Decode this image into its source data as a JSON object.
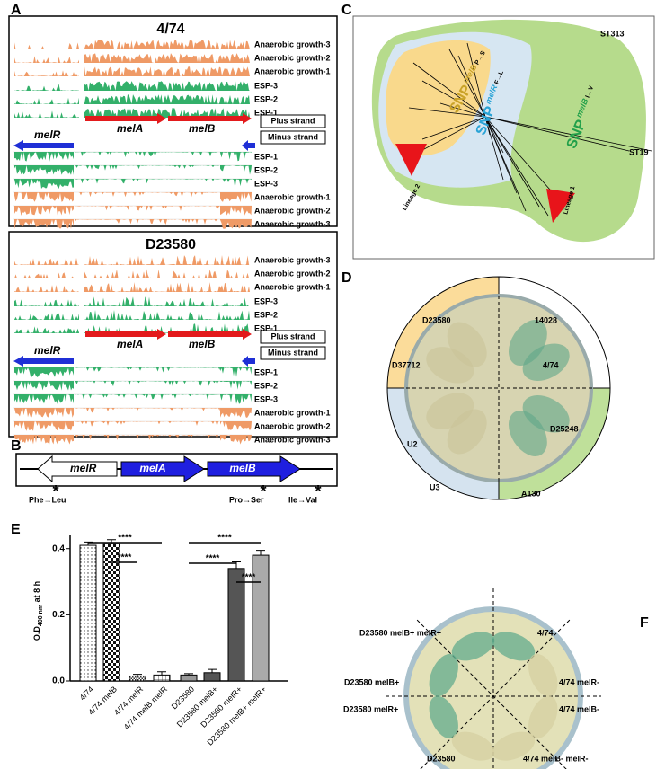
{
  "panel_a": {
    "label": "A",
    "blocks": [
      {
        "title": "4/74",
        "top_tracks": [
          "Anaerobic growth-3",
          "Anaerobic growth-2",
          "Anaerobic growth-1",
          "ESP-3",
          "ESP-2",
          "ESP-1"
        ],
        "genes": [
          "melA",
          "melB"
        ],
        "plus_strand": "Plus strand",
        "minus_strand": "Minus strand",
        "gene_minus": "melR",
        "bottom_tracks": [
          "ESP-1",
          "ESP-2",
          "ESP-3",
          "Anaerobic growth-1",
          "Anaerobic growth-2",
          "Anaerobic growth-3"
        ]
      },
      {
        "title": "D23580",
        "top_tracks": [
          "Anaerobic growth-3",
          "Anaerobic growth-2",
          "Anaerobic growth-1",
          "ESP-3",
          "ESP-2",
          "ESP-1"
        ],
        "genes": [
          "melA",
          "melB"
        ],
        "plus_strand": "Plus strand",
        "minus_strand": "Minus strand",
        "gene_minus": "melR",
        "bottom_tracks": [
          "ESP-1",
          "ESP-2",
          "ESP-3",
          "Anaerobic growth-1",
          "Anaerobic growth-2",
          "Anaerobic growth-3"
        ]
      }
    ]
  },
  "panel_b": {
    "label": "B",
    "genes": [
      "melR",
      "melA",
      "melB"
    ],
    "mutations": [
      "Phe→Leu",
      "Pro→Ser",
      "Ile→Val"
    ],
    "marker": "*"
  },
  "panel_c": {
    "label": "C",
    "group": "ST313",
    "outgroup": "ST19",
    "lineages": [
      "Lineage 2",
      "Lineage 1"
    ],
    "snps": [
      {
        "text": "SNP",
        "gene": "melB",
        "change": "P→S",
        "color": "#c9a227"
      },
      {
        "text": "SNP",
        "gene": "melR",
        "change": "F→L",
        "color": "#29a3d6"
      },
      {
        "text": "SNP",
        "gene": "melB",
        "change": "I→V",
        "color": "#22a04a"
      }
    ]
  },
  "panel_d": {
    "label": "D",
    "strains": [
      "D23580",
      "14028",
      "D37712",
      "4/74",
      "U2",
      "D25248",
      "U3",
      "A130"
    ]
  },
  "panel_e": {
    "label": "E",
    "chart_data": {
      "type": "bar",
      "y_label": "O.D",
      "y_label_subscript": "400 nm",
      "y_label_suffix": " at 8 h",
      "categories": [
        "4/74",
        "4/74 melB",
        "4/74 melR",
        "4/74 melB melR",
        "D23580",
        "D23580 melB+",
        "D23580 melR+",
        "D23580 melB+ melR+"
      ],
      "values": [
        0.41,
        0.415,
        0.015,
        0.018,
        0.018,
        0.025,
        0.34,
        0.38
      ],
      "errors": [
        0.01,
        0.012,
        0.005,
        0.01,
        0.004,
        0.01,
        0.02,
        0.015
      ],
      "patterns": [
        "dots",
        "checker",
        "fine-checker",
        "grid",
        "solid",
        "solid",
        "solid",
        "solid"
      ],
      "colors": [
        "#ffffff",
        "#222222",
        "#ffffff",
        "#ffffff",
        "#999999",
        "#555555",
        "#555555",
        "#aaaaaa"
      ],
      "ylim": [
        0,
        0.44
      ],
      "yticks": [
        {
          "value": 0,
          "label": "0.0"
        },
        0.2,
        0.4
      ],
      "significance": [
        "****",
        "****",
        "****",
        "****",
        "****"
      ]
    }
  },
  "panel_f": {
    "label": "F",
    "strains": [
      "D23580 melB+ melR+",
      "4/74",
      "D23580 melB+",
      "4/74 melR-",
      "D23580 melR+",
      "4/74 melB-",
      "D23580",
      "4/74 melB- melR-"
    ]
  }
}
